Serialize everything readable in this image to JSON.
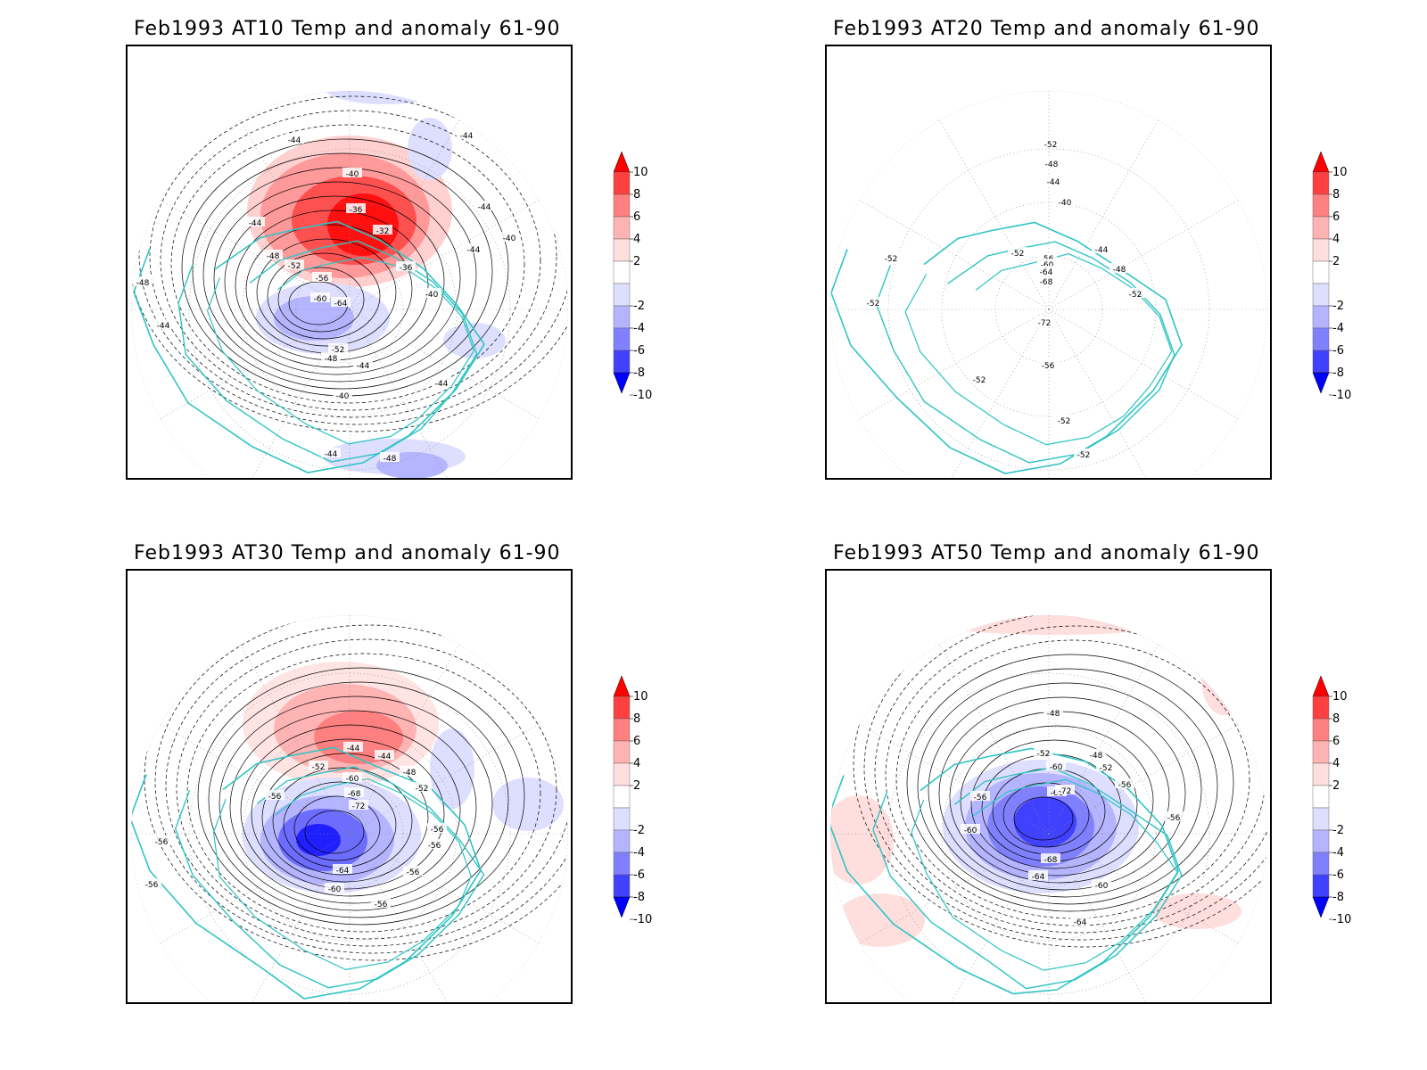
{
  "panels": [
    {
      "id": "at10",
      "title": "Feb1993 AT10 Temp and anomaly 61-90",
      "contour_labels": [
        "-44",
        "-44",
        "-44",
        "-40",
        "-36",
        "-32",
        "-36",
        "-40",
        "-44",
        "-48",
        "-52",
        "-56",
        "-60",
        "-64",
        "-52",
        "-48",
        "-44",
        "-40",
        "-44",
        "-48",
        "-44",
        "-44",
        "-40",
        "-48",
        "-44",
        "-44"
      ]
    },
    {
      "id": "at20",
      "title": "Feb1993 AT20 Temp and anomaly 61-90",
      "contour_labels": [
        "-52",
        "-48",
        "-44",
        "-40",
        "-44",
        "-48",
        "-52",
        "-56",
        "-60",
        "-64",
        "-68",
        "-72",
        "-52",
        "-52",
        "-56",
        "-52",
        "-52",
        "-52",
        "-52"
      ]
    },
    {
      "id": "at30",
      "title": "Feb1993 AT30 Temp and anomaly 61-90",
      "contour_labels": [
        "-44",
        "-44",
        "-48",
        "-52",
        "-52",
        "-56",
        "-60",
        "-68",
        "-72",
        "-56",
        "-56",
        "-56",
        "-56",
        "-64",
        "-60",
        "-56",
        "-56"
      ]
    },
    {
      "id": "at50",
      "title": "Feb1993 AT50 Temp and anomaly 61-90",
      "contour_labels": [
        "-48",
        "-52",
        "-48",
        "-52",
        "-56",
        "-60",
        "-68",
        "-56",
        "-60",
        "-72",
        "-68",
        "-64",
        "-60",
        "-64",
        "-56"
      ]
    }
  ],
  "colorbar": {
    "labels": [
      "10",
      "8",
      "6",
      "4",
      "2",
      "-2",
      "-4",
      "-6",
      "-8",
      "-10"
    ],
    "colors": [
      "#ff0000",
      "#ff4040",
      "#ff8080",
      "#ffb4b4",
      "#ffdede",
      "#ffffff",
      "#dedeff",
      "#b4b4ff",
      "#8080ff",
      "#4040ff",
      "#0000ff"
    ]
  },
  "colors": {
    "coastline": "#2fc4c4",
    "contour": "#000000",
    "warm": "#ff3030",
    "cold": "#3030ff",
    "grid": "#888888"
  }
}
